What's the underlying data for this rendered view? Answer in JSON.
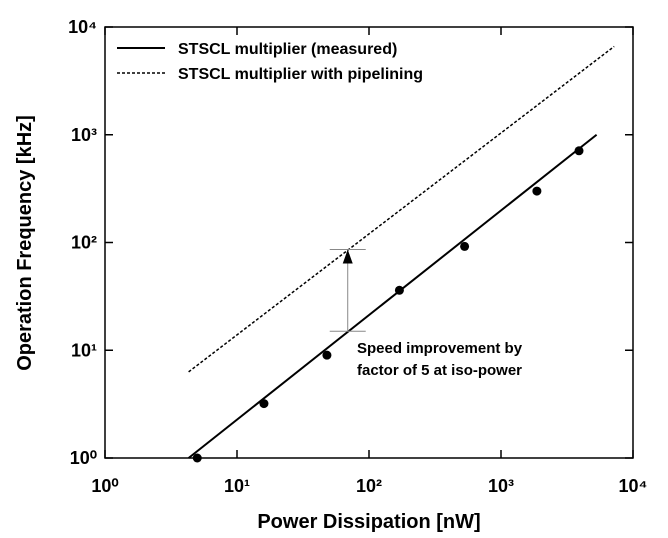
{
  "chart_data": {
    "type": "line",
    "xlabel": "Power Dissipation [nW]",
    "ylabel": "Operation Frequency [kHz]",
    "xscale": "log",
    "yscale": "log",
    "xlim": [
      1,
      10000
    ],
    "ylim": [
      1,
      10000
    ],
    "xticks": [
      {
        "value": 1,
        "label": "10⁰"
      },
      {
        "value": 10,
        "label": "10¹"
      },
      {
        "value": 100,
        "label": "10²"
      },
      {
        "value": 1000,
        "label": "10³"
      },
      {
        "value": 10000,
        "label": "10⁴"
      }
    ],
    "yticks": [
      {
        "value": 1,
        "label": "10⁰"
      },
      {
        "value": 10,
        "label": "10¹"
      },
      {
        "value": 100,
        "label": "10²"
      },
      {
        "value": 1000,
        "label": "10³"
      },
      {
        "value": 10000,
        "label": "10⁴"
      }
    ],
    "legend": "upper left",
    "series": [
      {
        "name": "STSCL multiplier (measured)",
        "style": "solid",
        "color": "#000000",
        "x": [
          4.3,
          5300
        ],
        "values": [
          1,
          1000
        ]
      },
      {
        "name": "STSCL multiplier with pipelining",
        "style": "dashed",
        "color": "#000000",
        "x": [
          4.3,
          7200
        ],
        "values": [
          6.3,
          6600
        ]
      }
    ],
    "points": {
      "color": "#000000",
      "x": [
        5,
        16,
        48,
        170,
        530,
        1870,
        3900
      ],
      "values": [
        1,
        3.2,
        9,
        36,
        92,
        300,
        710
      ]
    },
    "arrow": {
      "x": 69,
      "values": [
        15,
        86
      ],
      "color": "#888888"
    },
    "annotation": [
      "Speed improvement by",
      "factor of 5 at iso-power"
    ]
  }
}
